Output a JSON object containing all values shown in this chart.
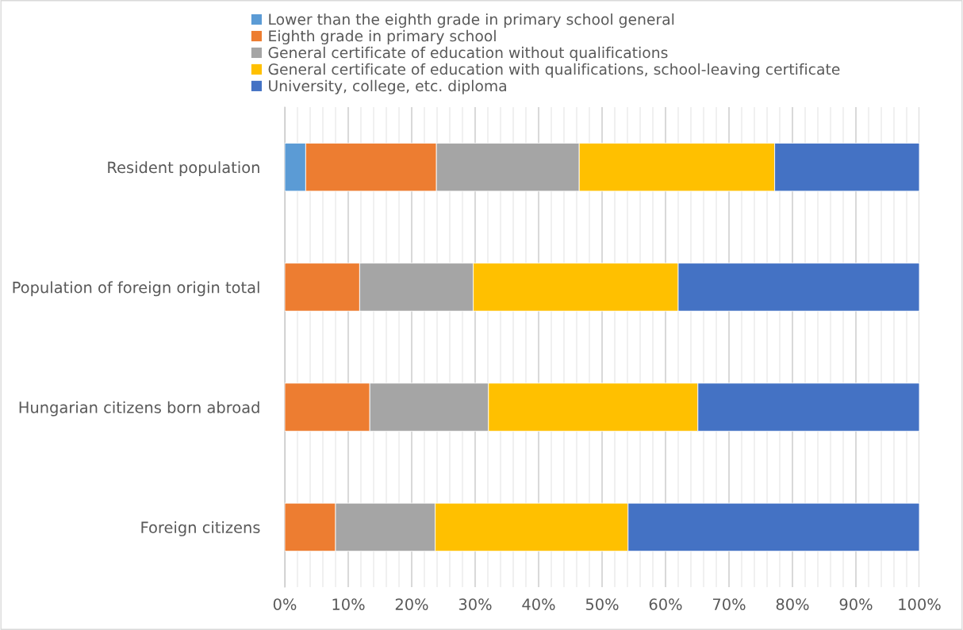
{
  "chart_data": {
    "type": "bar",
    "orientation": "horizontal",
    "stacked": true,
    "categories": [
      "Resident population",
      "Population of foreign origin total",
      "Hungarian citizens born abroad",
      "Foreign citizens"
    ],
    "series": [
      {
        "name": "Lower than the eighth grade in primary school general",
        "color": "#5b9bd5",
        "values": [
          3.3,
          0,
          0,
          0
        ]
      },
      {
        "name": "Eighth grade in primary school",
        "color": "#ed7d31",
        "values": [
          20.6,
          11.8,
          13.4,
          8.0
        ]
      },
      {
        "name": "General certificate of education without qualifications",
        "color": "#a5a5a5",
        "values": [
          22.5,
          17.9,
          18.7,
          15.7
        ]
      },
      {
        "name": "General certificate of education with qualifications, school-leaving certificate",
        "color": "#ffc000",
        "values": [
          30.8,
          32.3,
          33.0,
          30.4
        ]
      },
      {
        "name": "University, college, etc. diploma",
        "color": "#4472c4",
        "values": [
          22.8,
          38.0,
          34.9,
          45.9
        ]
      }
    ],
    "xlim": [
      0,
      100
    ],
    "xticks": [
      {
        "value": 0,
        "label": "0%"
      },
      {
        "value": 2,
        "label": null
      },
      {
        "value": 4,
        "label": null
      },
      {
        "value": 6,
        "label": null
      },
      {
        "value": 8,
        "label": null
      },
      {
        "value": 10,
        "label": "10%"
      },
      {
        "value": 12,
        "label": null
      },
      {
        "value": 14,
        "label": null
      },
      {
        "value": 16,
        "label": null
      },
      {
        "value": 18,
        "label": null
      },
      {
        "value": 20,
        "label": "20%"
      },
      {
        "value": 22,
        "label": null
      },
      {
        "value": 24,
        "label": null
      },
      {
        "value": 26,
        "label": null
      },
      {
        "value": 28,
        "label": null
      },
      {
        "value": 30,
        "label": "30%"
      },
      {
        "value": 32,
        "label": null
      },
      {
        "value": 34,
        "label": null
      },
      {
        "value": 36,
        "label": null
      },
      {
        "value": 38,
        "label": null
      },
      {
        "value": 40,
        "label": "40%"
      },
      {
        "value": 42,
        "label": null
      },
      {
        "value": 44,
        "label": null
      },
      {
        "value": 46,
        "label": null
      },
      {
        "value": 48,
        "label": null
      },
      {
        "value": 50,
        "label": "50%"
      },
      {
        "value": 52,
        "label": null
      },
      {
        "value": 54,
        "label": null
      },
      {
        "value": 56,
        "label": null
      },
      {
        "value": 58,
        "label": null
      },
      {
        "value": 60,
        "label": "60%"
      },
      {
        "value": 62,
        "label": null
      },
      {
        "value": 64,
        "label": null
      },
      {
        "value": 66,
        "label": null
      },
      {
        "value": 68,
        "label": null
      },
      {
        "value": 70,
        "label": "70%"
      },
      {
        "value": 72,
        "label": null
      },
      {
        "value": 74,
        "label": null
      },
      {
        "value": 76,
        "label": null
      },
      {
        "value": 78,
        "label": null
      },
      {
        "value": 80,
        "label": "80%"
      },
      {
        "value": 82,
        "label": null
      },
      {
        "value": 84,
        "label": null
      },
      {
        "value": 86,
        "label": null
      },
      {
        "value": 88,
        "label": null
      },
      {
        "value": 90,
        "label": "90%"
      },
      {
        "value": 92,
        "label": null
      },
      {
        "value": 94,
        "label": null
      },
      {
        "value": 96,
        "label": null
      },
      {
        "value": 98,
        "label": null
      },
      {
        "value": 100,
        "label": "100%"
      }
    ],
    "grid": "x",
    "legend": "top"
  }
}
